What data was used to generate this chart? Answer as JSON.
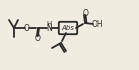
{
  "bg_color": "#f0ece0",
  "line_color": "#2a2a2a",
  "lw": 1.3,
  "figw": 1.39,
  "figh": 0.7,
  "dpi": 100,
  "abs_label": "Abs",
  "oh_label": "OH",
  "nh_label": "H\nN",
  "o_label": "O",
  "o_label2": "O"
}
